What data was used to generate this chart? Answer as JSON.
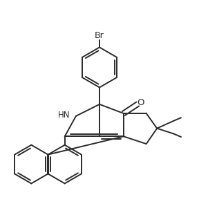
{
  "bg_color": "#ffffff",
  "line_color": "#2a2a2a",
  "line_width": 1.4,
  "text_color": "#2a2a2a",
  "font_size": 8.5,
  "xlim": [
    -1.2,
    5.8
  ],
  "ylim": [
    2.5,
    10.5
  ]
}
